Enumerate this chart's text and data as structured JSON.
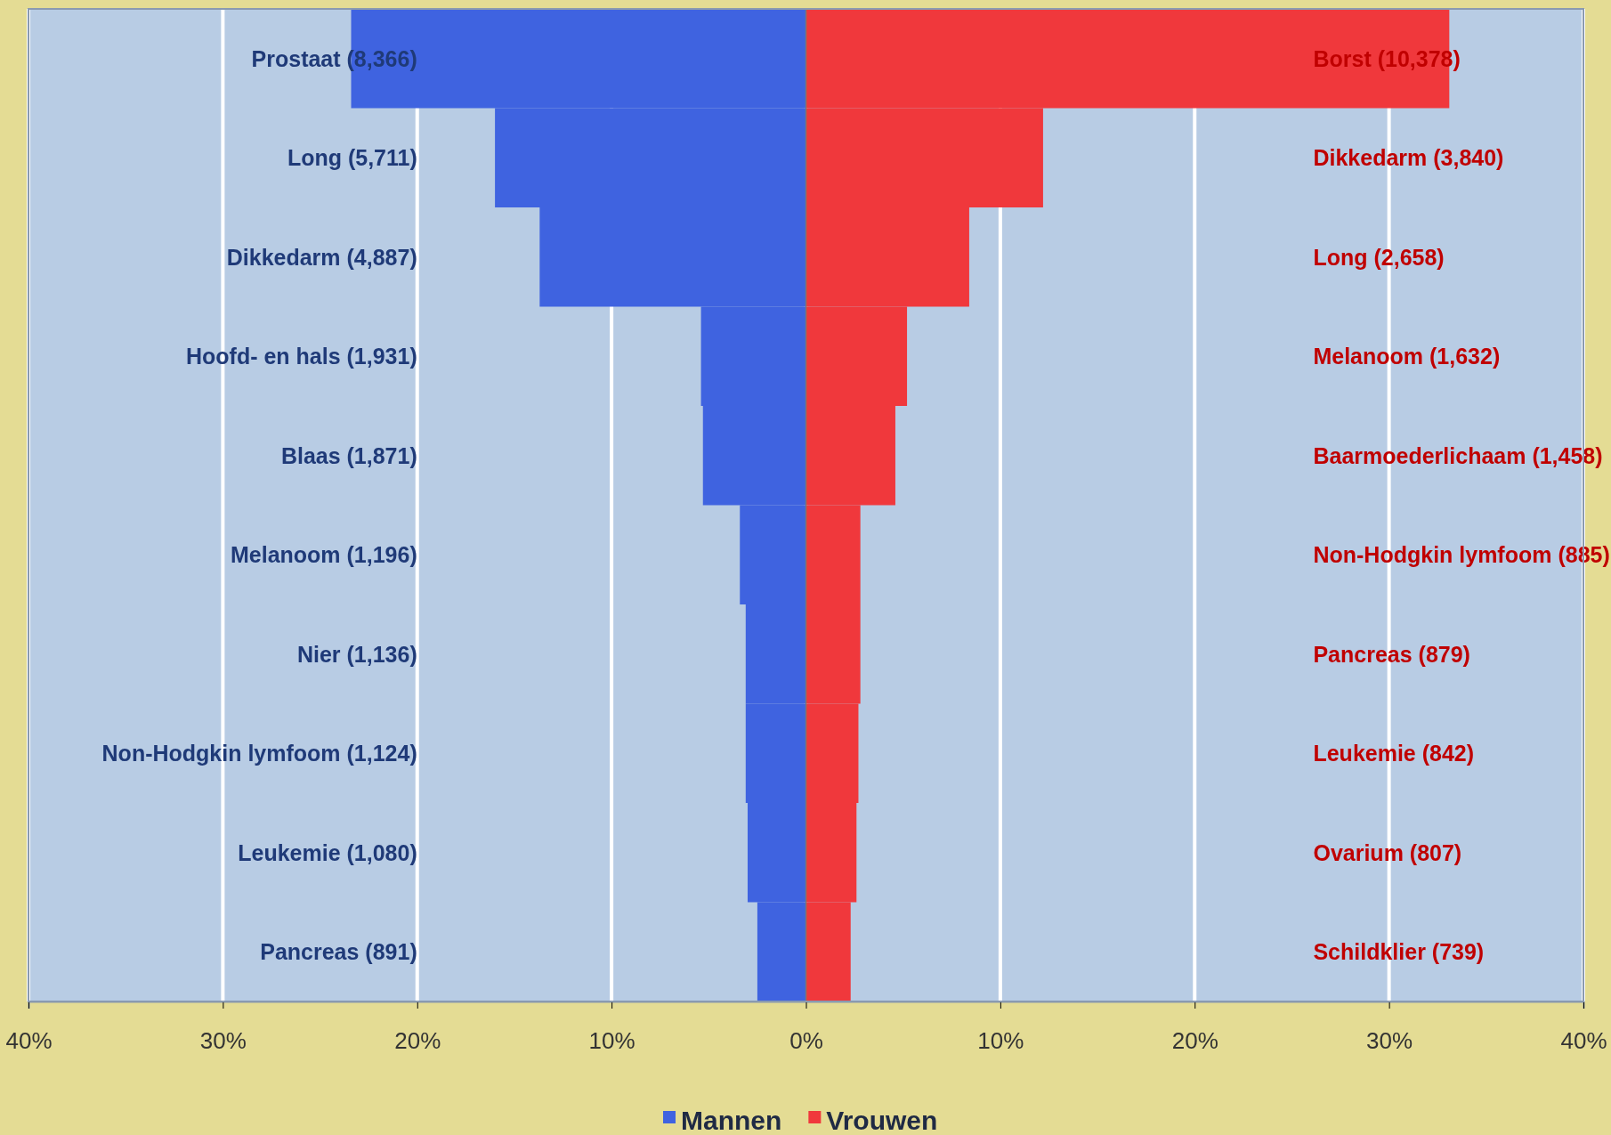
{
  "chart_data": {
    "type": "bar",
    "orientation": "horizontal",
    "stacked": true,
    "annotations": [
      "Prostaat (8,366)",
      "Long (5,711)",
      "Dikkedarm (4,887)",
      "Hoofd- en hals (1,931)",
      "Blaas (1,871)",
      "Melanoom (1,196)",
      "Nier (1,136)",
      "Non-Hodgkin lymfoom (1,124)",
      "Leukemie (1,080)",
      "Pancreas (891)",
      "Borst (10,378)",
      "Dikkedarm (3,840)",
      "Long (2,658)",
      "Melanoom  (1,632)",
      "Baarmoederlichaam  (1,458)",
      "Non-Hodgkin lymfoom  (885)",
      "Pancreas (879)",
      "Leukemie  (842)",
      "Ovarium (807)",
      "Schildklier  (739)"
    ],
    "categories": [
      null,
      null,
      null,
      null,
      null,
      null,
      null,
      null,
      null,
      null
    ],
    "series": [
      {
        "name": "Mannen",
        "color": "#3f63e0",
        "values": [
          -23.4,
          -16.0,
          -13.7,
          -5.4,
          -5.3,
          -3.4,
          -3.1,
          -3.1,
          -3.0,
          -2.5
        ]
      },
      {
        "name": "Vrouwen",
        "color": "#f0383c",
        "values": [
          33.1,
          12.2,
          8.4,
          5.2,
          4.6,
          2.8,
          2.8,
          2.7,
          2.6,
          2.3
        ]
      }
    ],
    "xlim": [
      -40,
      40
    ],
    "xticks": [
      {
        "value": -40,
        "label": "40%"
      },
      {
        "value": -30,
        "label": "30%"
      },
      {
        "value": -20,
        "label": "20%"
      },
      {
        "value": -10,
        "label": "10%"
      },
      {
        "value": 0,
        "label": "0%"
      },
      {
        "value": 10,
        "label": "10%"
      },
      {
        "value": 20,
        "label": "20%"
      },
      {
        "value": 30,
        "label": "30%"
      },
      {
        "value": 40,
        "label": "40%"
      }
    ],
    "grid": "x",
    "legend": "bottom"
  }
}
